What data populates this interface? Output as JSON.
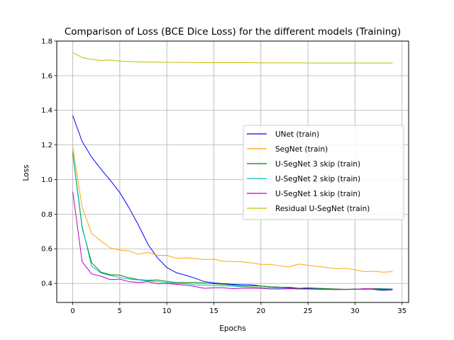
{
  "chart_data": {
    "type": "line",
    "title": "Comparison of Loss (BCE Dice Loss) for the different models (Training)",
    "xlabel": "Epochs",
    "ylabel": "Loss",
    "xlim": [
      -1.7,
      35.7
    ],
    "ylim": [
      0.29,
      1.8
    ],
    "xticks": [
      0,
      5,
      10,
      15,
      20,
      25,
      30,
      35
    ],
    "yticks": [
      0.4,
      0.6,
      0.8,
      1.0,
      1.2,
      1.4,
      1.6,
      1.8
    ],
    "ytick_labels": [
      "0.4",
      "0.6",
      "0.8",
      "1.0",
      "1.2",
      "1.4",
      "1.6",
      "1.8"
    ],
    "grid": true,
    "legend_position": "center-right",
    "x": [
      0,
      1,
      2,
      3,
      4,
      5,
      6,
      7,
      8,
      9,
      10,
      11,
      12,
      13,
      14,
      15,
      16,
      17,
      18,
      19,
      20,
      21,
      22,
      23,
      24,
      25,
      26,
      27,
      28,
      29,
      30,
      31,
      32,
      33,
      34
    ],
    "series": [
      {
        "name": "UNet (train)",
        "color": "#0000ff",
        "values": [
          1.37,
          1.22,
          1.13,
          1.06,
          0.995,
          0.925,
          0.835,
          0.735,
          0.625,
          0.548,
          0.492,
          0.462,
          0.447,
          0.43,
          0.41,
          0.403,
          0.398,
          0.395,
          0.393,
          0.392,
          0.385,
          0.38,
          0.378,
          0.375,
          0.372,
          0.37,
          0.369,
          0.368,
          0.366,
          0.365,
          0.366,
          0.366,
          0.365,
          0.36,
          0.363
        ]
      },
      {
        "name": "SegNet (train)",
        "color": "#ffa500",
        "values": [
          1.19,
          0.84,
          0.69,
          0.645,
          0.605,
          0.592,
          0.587,
          0.568,
          0.58,
          0.562,
          0.562,
          0.545,
          0.548,
          0.543,
          0.538,
          0.54,
          0.528,
          0.527,
          0.525,
          0.518,
          0.51,
          0.51,
          0.502,
          0.495,
          0.512,
          0.505,
          0.498,
          0.492,
          0.485,
          0.488,
          0.478,
          0.468,
          0.47,
          0.465,
          0.468
        ]
      },
      {
        "name": "U-SegNet 3 skip (train)",
        "color": "#008000",
        "values": [
          1.15,
          0.72,
          0.52,
          0.465,
          0.45,
          0.448,
          0.432,
          0.422,
          0.418,
          0.42,
          0.412,
          0.405,
          0.405,
          0.405,
          0.402,
          0.398,
          0.395,
          0.39,
          0.385,
          0.385,
          0.385,
          0.38,
          0.378,
          0.378,
          0.372,
          0.375,
          0.372,
          0.37,
          0.368,
          0.366,
          0.368,
          0.368,
          0.37,
          0.37,
          0.368
        ]
      },
      {
        "name": "U-SegNet 2 skip (train)",
        "color": "#00bfbf",
        "values": [
          1.16,
          0.73,
          0.5,
          0.46,
          0.445,
          0.435,
          0.425,
          0.42,
          0.415,
          0.41,
          0.405,
          0.4,
          0.398,
          0.392,
          0.39,
          0.388,
          0.386,
          0.384,
          0.38,
          0.378,
          0.376,
          0.374,
          0.372,
          0.37,
          0.368,
          0.368,
          0.367,
          0.366,
          0.365,
          0.365,
          0.366,
          0.365,
          0.366,
          0.368,
          0.366
        ]
      },
      {
        "name": "U-SegNet 1 skip (train)",
        "color": "#bf00bf",
        "values": [
          0.93,
          0.525,
          0.455,
          0.442,
          0.422,
          0.425,
          0.41,
          0.405,
          0.41,
          0.398,
          0.4,
          0.395,
          0.39,
          0.382,
          0.372,
          0.375,
          0.375,
          0.37,
          0.372,
          0.372,
          0.372,
          0.368,
          0.368,
          0.37,
          0.368,
          0.368,
          0.366,
          0.365,
          0.364,
          0.365,
          0.366,
          0.37,
          0.368,
          0.364,
          0.365
        ]
      },
      {
        "name": "Residual U-SegNet (train)",
        "color": "#bfbf00",
        "values": [
          1.735,
          1.705,
          1.695,
          1.688,
          1.69,
          1.685,
          1.682,
          1.68,
          1.678,
          1.678,
          1.677,
          1.677,
          1.676,
          1.676,
          1.675,
          1.675,
          1.675,
          1.675,
          1.675,
          1.675,
          1.674,
          1.674,
          1.674,
          1.674,
          1.674,
          1.673,
          1.673,
          1.673,
          1.673,
          1.673,
          1.673,
          1.673,
          1.673,
          1.673,
          1.673
        ]
      }
    ]
  }
}
